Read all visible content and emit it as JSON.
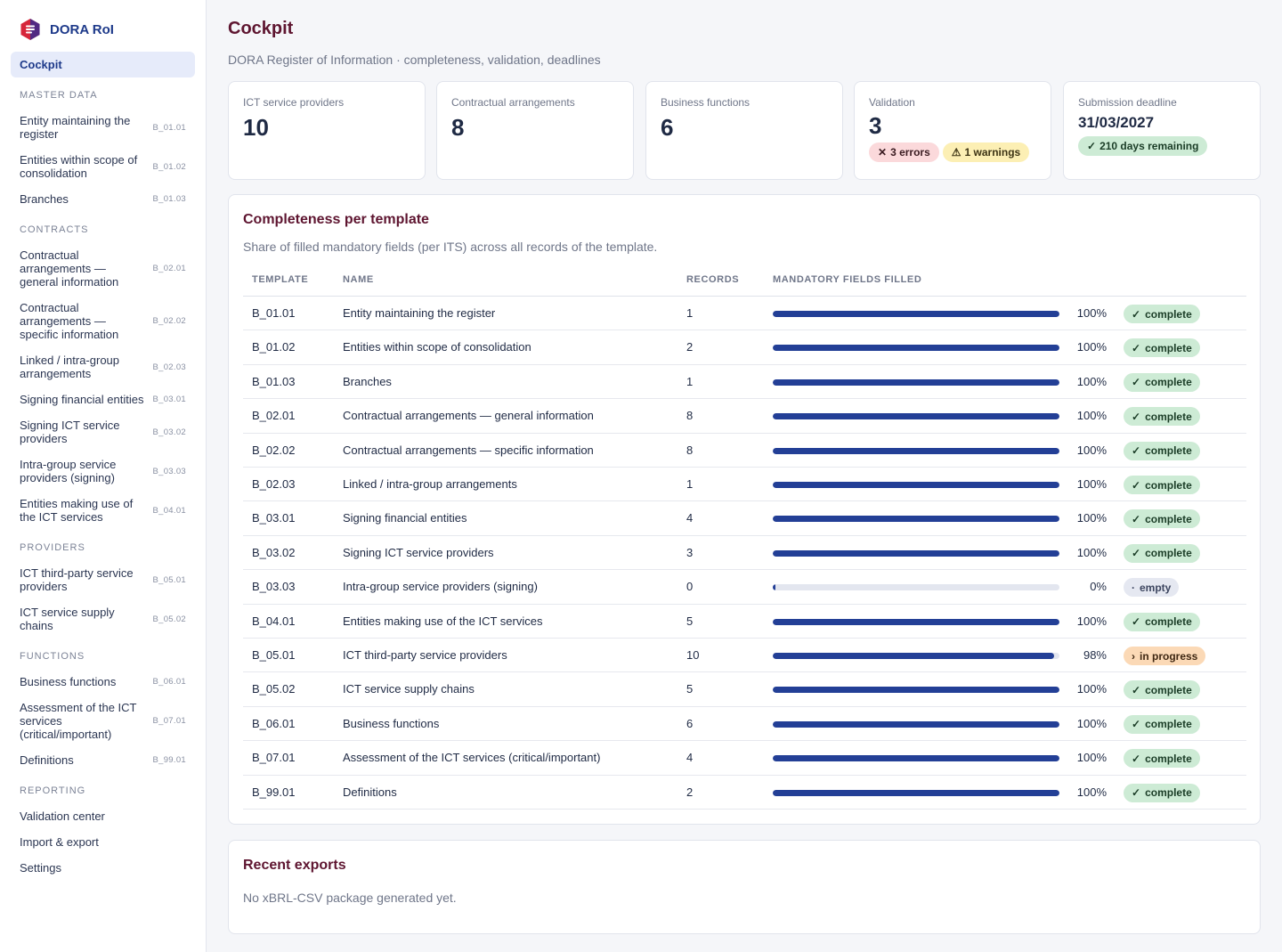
{
  "app": {
    "name": "DORA RoI",
    "logo_icon": "dora-logo-icon"
  },
  "sidebar": {
    "active": "Cockpit",
    "sections": [
      {
        "title": "MASTER DATA",
        "items": [
          {
            "label": "Entity maintaining the register",
            "code": "B_01.01"
          },
          {
            "label": "Entities within scope of consolidation",
            "code": "B_01.02"
          },
          {
            "label": "Branches",
            "code": "B_01.03"
          }
        ]
      },
      {
        "title": "CONTRACTS",
        "items": [
          {
            "label": "Contractual arrangements — general information",
            "code": "B_02.01"
          },
          {
            "label": "Contractual arrangements — specific information",
            "code": "B_02.02"
          },
          {
            "label": "Linked / intra-group arrangements",
            "code": "B_02.03"
          },
          {
            "label": "Signing financial entities",
            "code": "B_03.01"
          },
          {
            "label": "Signing ICT service providers",
            "code": "B_03.02"
          },
          {
            "label": "Intra-group service providers (signing)",
            "code": "B_03.03"
          },
          {
            "label": "Entities making use of the ICT services",
            "code": "B_04.01"
          }
        ]
      },
      {
        "title": "PROVIDERS",
        "items": [
          {
            "label": "ICT third-party service providers",
            "code": "B_05.01"
          },
          {
            "label": "ICT service supply chains",
            "code": "B_05.02"
          }
        ]
      },
      {
        "title": "FUNCTIONS",
        "items": [
          {
            "label": "Business functions",
            "code": "B_06.01"
          },
          {
            "label": "Assessment of the ICT services (critical/important)",
            "code": "B_07.01"
          },
          {
            "label": "Definitions",
            "code": "B_99.01"
          }
        ]
      },
      {
        "title": "REPORTING",
        "items": [
          {
            "label": "Validation center",
            "code": ""
          },
          {
            "label": "Import & export",
            "code": ""
          },
          {
            "label": "Settings",
            "code": ""
          }
        ]
      }
    ]
  },
  "header": {
    "title": "Cockpit",
    "subtitle": "DORA Register of Information · completeness, validation, deadlines"
  },
  "kpis": {
    "providers": {
      "label": "ICT service providers",
      "value": "10"
    },
    "contracts": {
      "label": "Contractual arrangements",
      "value": "8"
    },
    "functions": {
      "label": "Business functions",
      "value": "6"
    },
    "validation": {
      "label": "Validation",
      "value": "3",
      "errors_icon": "✕",
      "errors": "3 errors",
      "warnings_icon": "⚠",
      "warnings": "1 warnings"
    },
    "deadline": {
      "label": "Submission deadline",
      "date": "31/03/2027",
      "remaining_icon": "✓",
      "remaining": "210 days remaining"
    }
  },
  "completeness": {
    "title": "Completeness per template",
    "subtitle": "Share of filled mandatory fields (per ITS) across all records of the template.",
    "columns": {
      "template": "TEMPLATE",
      "name": "NAME",
      "records": "RECORDS",
      "filled": "MANDATORY FIELDS FILLED"
    },
    "rows": [
      {
        "template": "B_01.01",
        "name": "Entity maintaining the register",
        "records": "1",
        "percent": 100,
        "percent_label": "100%",
        "status": "complete",
        "status_icon": "✓"
      },
      {
        "template": "B_01.02",
        "name": "Entities within scope of consolidation",
        "records": "2",
        "percent": 100,
        "percent_label": "100%",
        "status": "complete",
        "status_icon": "✓"
      },
      {
        "template": "B_01.03",
        "name": "Branches",
        "records": "1",
        "percent": 100,
        "percent_label": "100%",
        "status": "complete",
        "status_icon": "✓"
      },
      {
        "template": "B_02.01",
        "name": "Contractual arrangements — general information",
        "records": "8",
        "percent": 100,
        "percent_label": "100%",
        "status": "complete",
        "status_icon": "✓"
      },
      {
        "template": "B_02.02",
        "name": "Contractual arrangements — specific information",
        "records": "8",
        "percent": 100,
        "percent_label": "100%",
        "status": "complete",
        "status_icon": "✓"
      },
      {
        "template": "B_02.03",
        "name": "Linked / intra-group arrangements",
        "records": "1",
        "percent": 100,
        "percent_label": "100%",
        "status": "complete",
        "status_icon": "✓"
      },
      {
        "template": "B_03.01",
        "name": "Signing financial entities",
        "records": "4",
        "percent": 100,
        "percent_label": "100%",
        "status": "complete",
        "status_icon": "✓"
      },
      {
        "template": "B_03.02",
        "name": "Signing ICT service providers",
        "records": "3",
        "percent": 100,
        "percent_label": "100%",
        "status": "complete",
        "status_icon": "✓"
      },
      {
        "template": "B_03.03",
        "name": "Intra-group service providers (signing)",
        "records": "0",
        "percent": 0,
        "percent_label": "0%",
        "status": "empty",
        "status_icon": "·"
      },
      {
        "template": "B_04.01",
        "name": "Entities making use of the ICT services",
        "records": "5",
        "percent": 100,
        "percent_label": "100%",
        "status": "complete",
        "status_icon": "✓"
      },
      {
        "template": "B_05.01",
        "name": "ICT third-party service providers",
        "records": "10",
        "percent": 98,
        "percent_label": "98%",
        "status": "in progress",
        "status_icon": "›"
      },
      {
        "template": "B_05.02",
        "name": "ICT service supply chains",
        "records": "5",
        "percent": 100,
        "percent_label": "100%",
        "status": "complete",
        "status_icon": "✓"
      },
      {
        "template": "B_06.01",
        "name": "Business functions",
        "records": "6",
        "percent": 100,
        "percent_label": "100%",
        "status": "complete",
        "status_icon": "✓"
      },
      {
        "template": "B_07.01",
        "name": "Assessment of the ICT services (critical/important)",
        "records": "4",
        "percent": 100,
        "percent_label": "100%",
        "status": "complete",
        "status_icon": "✓"
      },
      {
        "template": "B_99.01",
        "name": "Definitions",
        "records": "2",
        "percent": 100,
        "percent_label": "100%",
        "status": "complete",
        "status_icon": "✓"
      }
    ]
  },
  "exports": {
    "title": "Recent exports",
    "empty_text": "No xBRL-CSV package generated yet."
  },
  "colors": {
    "accent": "#1e3a8a",
    "heading": "#5e1530",
    "bar": "#233f96",
    "complete": "#cdebd5",
    "in_progress": "#fbd9b6",
    "empty": "#e5e8f1",
    "error": "#fbd9db",
    "warning": "#fcefb4"
  }
}
